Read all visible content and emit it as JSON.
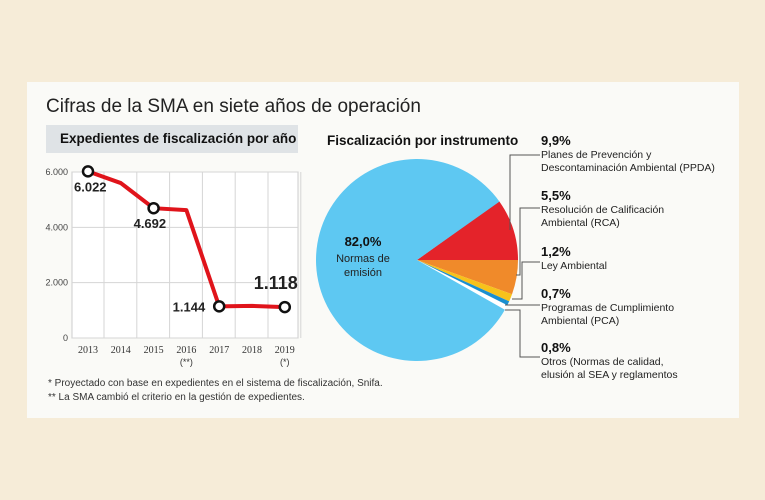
{
  "title": "Cifras de la SMA en siete años de operación",
  "notes": [
    "* Proyectado con base en expedientes en el sistema de fiscalización, Snifa.",
    "** La SMA cambió el criterio en la gestión de expedientes."
  ],
  "chart_data": [
    {
      "type": "line",
      "title": "Expedientes de fiscalización por año",
      "categories": [
        "2013",
        "2014",
        "2015",
        "2016",
        "2017",
        "2018",
        "2019"
      ],
      "category_notes": [
        "",
        "",
        "",
        "(**)",
        "",
        "",
        "(*)"
      ],
      "values": [
        6022,
        5600,
        4692,
        4620,
        1144,
        1160,
        1118
      ],
      "data_labels": [
        "6.022",
        "",
        "4.692",
        "",
        "1.144",
        "",
        "1.118"
      ],
      "yticks": [
        0,
        2000,
        4000,
        6000
      ],
      "ytick_labels": [
        "0",
        "2.000",
        "4.000",
        "6.000"
      ],
      "ylim": [
        0,
        6000
      ],
      "grid": true,
      "color": "#e0141b"
    },
    {
      "type": "pie",
      "title": "Fiscalización por instrumento",
      "slices": [
        {
          "value": 9.9,
          "label": "9,9%",
          "name": "Planes de Prevención y|Descontaminación Ambiental (PPDA)",
          "color": "#e4232a"
        },
        {
          "value": 5.5,
          "label": "5,5%",
          "name": "Resolución de Calificación|Ambiental (RCA)",
          "color": "#f08a2a"
        },
        {
          "value": 1.2,
          "label": "1,2%",
          "name": "Ley Ambiental",
          "color": "#f7c21b"
        },
        {
          "value": 0.7,
          "label": "0,7%",
          "name": "Programas de Cumplimiento|Ambiental (PCA)",
          "color": "#1a8fd0"
        },
        {
          "value": 0.8,
          "label": "0,8%",
          "name": "Otros (Normas de calidad,|elusión al SEA y reglamentos",
          "color": "#ffffff"
        },
        {
          "value": 82.0,
          "label": "82,0%",
          "name": "Normas de|emisión",
          "color": "#5ec8f2"
        }
      ]
    }
  ]
}
